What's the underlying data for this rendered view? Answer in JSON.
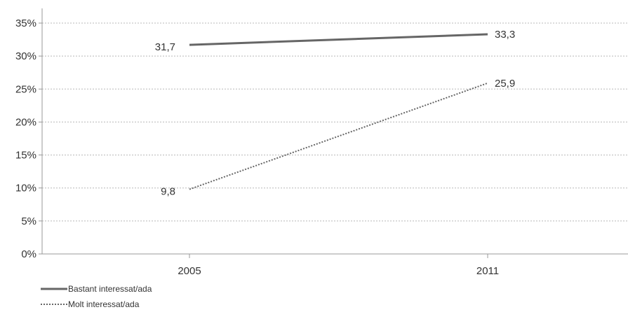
{
  "chart_data": {
    "type": "line",
    "title": "",
    "xlabel": "",
    "ylabel": "",
    "categories": [
      "2005",
      "2011"
    ],
    "y_ticks": [
      "0%",
      "5%",
      "10%",
      "15%",
      "20%",
      "25%",
      "30%",
      "35%"
    ],
    "ylim": [
      0,
      35
    ],
    "grid": true,
    "legend_position": "bottom-left",
    "series": [
      {
        "name": "Bastant interessat/ada",
        "values": [
          31.7,
          33.3
        ],
        "labels": [
          "31,7",
          "33,3"
        ],
        "style": "solid",
        "color": "#666666"
      },
      {
        "name": "Molt interessat/ada",
        "values": [
          9.8,
          25.9
        ],
        "labels": [
          "9,8",
          "25,9"
        ],
        "style": "dotted",
        "color": "#666666"
      }
    ]
  }
}
